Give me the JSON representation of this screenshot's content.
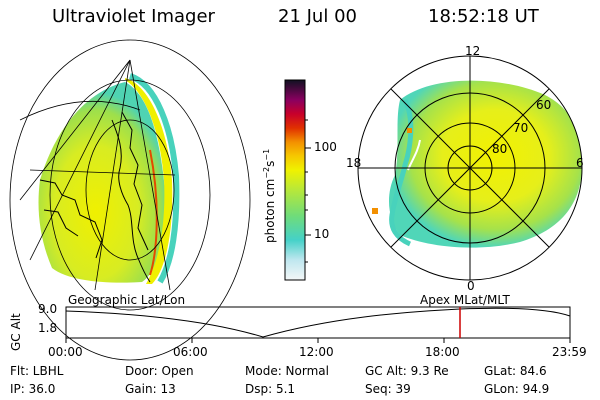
{
  "header": {
    "title": "Ultraviolet Imager",
    "date": "21 Jul 00",
    "time": "18:52:18 UT"
  },
  "colorbar": {
    "label_main": "photon cm",
    "label_sup1": "−2",
    "label_s": "s",
    "label_sup2": "−1",
    "tick_high": "100",
    "tick_low": "10"
  },
  "polar": {
    "mlt_12": "12",
    "mlt_18": "18",
    "mlt_6": "6",
    "mlt_0": "0",
    "lat_60": "60",
    "lat_70": "70",
    "lat_80": "80"
  },
  "timeline": {
    "left_label": "Geographic Lat/Lon",
    "right_label": "Apex MLat/MLT",
    "yaxis_label": "GC Alt",
    "y_top": "9.0",
    "y_bottom": "1.8",
    "ticks": [
      "00:00",
      "06:00",
      "12:00",
      "18:00",
      "23:59"
    ]
  },
  "info": {
    "flt": "Flt: LBHL",
    "door": "Door: Open",
    "mode": "Mode: Normal",
    "gcalt": "GC Alt: 9.3 Re",
    "glat": "GLat:  84.6",
    "ip": "IP: 36.0",
    "gain": "Gain: 13",
    "dsp": "Dsp:    5.1",
    "seq": "Seq: 39",
    "glon": "GLon:  94.9"
  },
  "colors": {
    "marker": "#cc0000",
    "aurora_yellow": "#f2f000",
    "aurora_green": "#9be14a",
    "aurora_cyan": "#3ad7c6"
  }
}
